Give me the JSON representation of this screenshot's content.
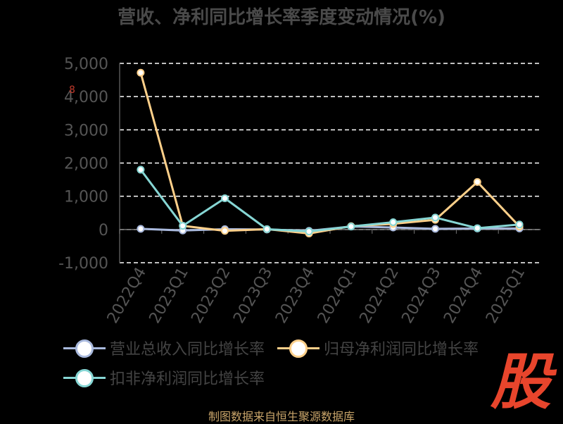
{
  "chart_data": {
    "type": "line",
    "title": "营收、净利同比增长率季度变动情况(%)",
    "categories": [
      "2022Q4",
      "2023Q1",
      "2023Q2",
      "2023Q3",
      "2023Q4",
      "2024Q1",
      "2024Q2",
      "2024Q3",
      "2024Q4",
      "2025Q1"
    ],
    "ylim": [
      -1000,
      5000
    ],
    "yticks": [
      -1000,
      0,
      1000,
      2000,
      3000,
      4000,
      5000
    ],
    "ytick_labels": [
      "-1,000",
      "0",
      "1,000",
      "2,000",
      "3,000",
      "4,000",
      "5,000"
    ],
    "grid": true,
    "legend_position": "bottom",
    "series": [
      {
        "name": "营业总收入同比增长率",
        "color": "#a9b9dd",
        "values": [
          20,
          -30,
          10,
          0,
          -40,
          90,
          60,
          20,
          30,
          30
        ]
      },
      {
        "name": "归母净利润同比增长率",
        "color": "#ffd08a",
        "values": [
          4720,
          110,
          -40,
          10,
          -120,
          100,
          170,
          290,
          1430,
          90
        ]
      },
      {
        "name": "扣非净利润同比增长率",
        "color": "#86d6d4",
        "values": [
          1800,
          110,
          940,
          10,
          -60,
          90,
          220,
          360,
          40,
          150
        ]
      }
    ]
  },
  "source_text": "制图数据来自恒生聚源数据库",
  "logo_text": "股",
  "marker_note": "8"
}
